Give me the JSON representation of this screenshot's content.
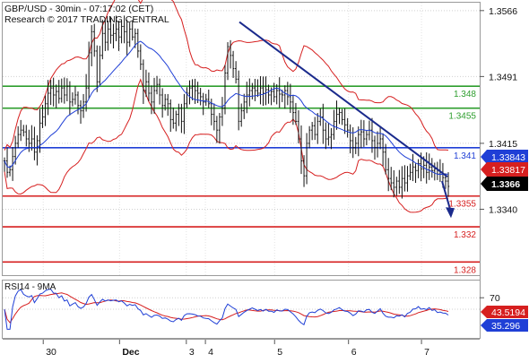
{
  "header": {
    "title": "GBP/USD - 30min - 07:17:02 (CET)",
    "subtitle": "Research © 2017 TRADING CENTRAL"
  },
  "chart_data": [
    {
      "type": "candlestick",
      "title": "GBP/USD - 30min - 07:17:02 (CET)",
      "ylim": [
        1.3265,
        1.3575
      ],
      "y_ticks": [
        1.3566,
        1.3491,
        1.3415,
        1.334
      ],
      "x_ticks": [
        "30",
        "Dec",
        "3",
        "4",
        "5",
        "6",
        "7"
      ],
      "levels": [
        {
          "value": 1.348,
          "label": "1.348",
          "color": "#2e9e2e"
        },
        {
          "value": 1.3455,
          "label": "1.3455",
          "color": "#2e9e2e"
        },
        {
          "value": 1.341,
          "label": "1.341",
          "color": "#1f3fd6"
        },
        {
          "value": 1.3355,
          "label": "1.3355",
          "color": "#d61f1f"
        },
        {
          "value": 1.332,
          "label": "1.332",
          "color": "#d61f1f"
        },
        {
          "value": 1.328,
          "label": "1.328",
          "color": "#d61f1f"
        }
      ],
      "price_tags": [
        {
          "value": 1.33843,
          "label": "1.33843",
          "color": "#1f3fd6"
        },
        {
          "value": 1.33817,
          "label": "1.33817",
          "color": "#d61f1f"
        },
        {
          "value": 1.3366,
          "label": "1.3366",
          "color": "#000000"
        }
      ],
      "trendline": {
        "from": [
          0.445,
          1.5
        ],
        "to": [
          0.85,
          1.3372
        ]
      },
      "forecast": {
        "from": 1.3372,
        "to": 1.3332
      },
      "close": [
        1.3395,
        1.3382,
        1.3385,
        1.34,
        1.3415,
        1.3425,
        1.343,
        1.3428,
        1.342,
        1.3415,
        1.342,
        1.3405,
        1.3418,
        1.3438,
        1.3445,
        1.346,
        1.3472,
        1.3478,
        1.347,
        1.3474,
        1.3466,
        1.3478,
        1.347,
        1.348,
        1.3462,
        1.3465,
        1.347,
        1.3458,
        1.3452,
        1.3462,
        1.3478,
        1.3518,
        1.3542,
        1.352,
        1.3485,
        1.3515,
        1.354,
        1.353,
        1.3545,
        1.3538,
        1.354,
        1.3545,
        1.3536,
        1.3548,
        1.3542,
        1.353,
        1.3545,
        1.3536,
        1.354,
        1.352,
        1.3505,
        1.3475,
        1.3485,
        1.3472,
        1.3462,
        1.3475,
        1.3482,
        1.347,
        1.3458,
        1.3465,
        1.346,
        1.3442,
        1.3438,
        1.3448,
        1.3455,
        1.344,
        1.346,
        1.3472,
        1.3478,
        1.348,
        1.3475,
        1.3472,
        1.3468,
        1.3462,
        1.3465,
        1.346,
        1.3448,
        1.344,
        1.343,
        1.3445,
        1.3455,
        1.3495,
        1.3525,
        1.3515,
        1.35,
        1.3488,
        1.344,
        1.3452,
        1.3462,
        1.347,
        1.3475,
        1.3478,
        1.3475,
        1.3472,
        1.3478,
        1.3472,
        1.3476,
        1.347,
        1.3474,
        1.3468,
        1.3475,
        1.3471,
        1.347,
        1.3475,
        1.3468,
        1.3462,
        1.345,
        1.344,
        1.342,
        1.3395,
        1.3378,
        1.3415,
        1.343,
        1.3435,
        1.3425,
        1.344,
        1.3445,
        1.343,
        1.342,
        1.3422,
        1.3425,
        1.344,
        1.3448,
        1.345,
        1.3442,
        1.3436,
        1.343,
        1.3418,
        1.341,
        1.3415,
        1.3425,
        1.3428,
        1.342,
        1.3425,
        1.343,
        1.3418,
        1.341,
        1.3415,
        1.342,
        1.3405,
        1.3385,
        1.3375,
        1.337,
        1.3365,
        1.3372,
        1.3365,
        1.3375,
        1.337,
        1.3378,
        1.3382,
        1.3388,
        1.3384,
        1.3392,
        1.3386,
        1.339,
        1.3382,
        1.3388,
        1.3384,
        1.3386,
        1.338,
        1.3382,
        1.3376,
        1.3372,
        1.3366
      ],
      "bollinger_color": "#d61f1f",
      "ma_color": "#1f3fd6"
    },
    {
      "type": "line",
      "title": "RSI14 - 9MA",
      "ylim": [
        0,
        100
      ],
      "y_ticks": [
        70,
        50
      ],
      "value_tags": [
        {
          "value": 43.5194,
          "label": "43.5194",
          "color": "#d61f1f"
        },
        {
          "value": 35.296,
          "label": "35.296",
          "color": "#1f3fd6"
        }
      ],
      "series": [
        {
          "name": "RSI14",
          "color": "#1f3fd6"
        },
        {
          "name": "9MA",
          "color": "#d61f1f"
        }
      ]
    }
  ]
}
